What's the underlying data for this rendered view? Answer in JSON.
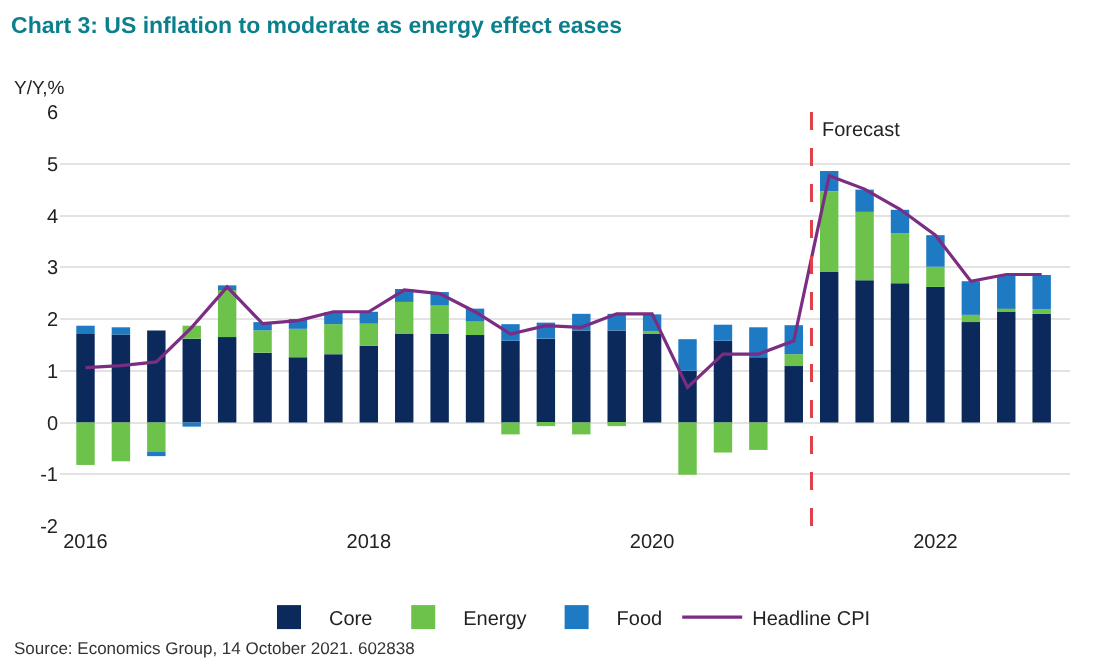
{
  "chart_data": {
    "type": "bar",
    "title": "Chart 3: US inflation to moderate as energy effect eases",
    "ylabel": "Y/Y,%",
    "x": [
      2016,
      2016.25,
      2016.5,
      2016.75,
      2017,
      2017.25,
      2017.5,
      2017.75,
      2018,
      2018.25,
      2018.5,
      2018.75,
      2019,
      2019.25,
      2019.5,
      2019.75,
      2020,
      2020.25,
      2020.5,
      2020.75,
      2021,
      2021.25,
      2021.5,
      2021.75,
      2022,
      2022.25,
      2022.5,
      2022.75
    ],
    "stacked": true,
    "series": [
      {
        "name": "Core",
        "color": "#0b2a5b",
        "values": [
          1.71,
          1.7,
          1.78,
          1.62,
          1.65,
          1.35,
          1.26,
          1.32,
          1.48,
          1.71,
          1.71,
          1.69,
          1.58,
          1.62,
          1.78,
          1.78,
          1.71,
          1.0,
          1.58,
          1.26,
          1.09,
          2.91,
          2.75,
          2.69,
          2.62,
          1.94,
          2.14,
          2.1
        ]
      },
      {
        "name": "Energy",
        "color": "#6cc24a",
        "values": [
          -0.82,
          -0.75,
          -0.56,
          0.25,
          0.91,
          0.43,
          0.55,
          0.58,
          0.43,
          0.62,
          0.55,
          0.26,
          -0.23,
          -0.07,
          -0.23,
          -0.07,
          0.06,
          -1.01,
          -0.58,
          -0.53,
          0.23,
          1.56,
          1.32,
          0.97,
          0.39,
          0.14,
          0.06,
          0.09
        ]
      },
      {
        "name": "Food",
        "color": "#1f7ac4",
        "values": [
          0.16,
          0.14,
          -0.09,
          -0.08,
          0.09,
          0.16,
          0.19,
          0.23,
          0.23,
          0.25,
          0.26,
          0.25,
          0.32,
          0.31,
          0.32,
          0.32,
          0.32,
          0.61,
          0.31,
          0.58,
          0.56,
          0.39,
          0.43,
          0.45,
          0.61,
          0.65,
          0.65,
          0.66
        ]
      },
      {
        "name": "Headline CPI",
        "type": "line",
        "color": "#7b2d84",
        "marker": "none",
        "values": [
          1.06,
          1.1,
          1.17,
          1.84,
          2.62,
          1.91,
          1.97,
          2.14,
          2.14,
          2.56,
          2.49,
          2.14,
          1.71,
          1.87,
          1.84,
          2.1,
          2.1,
          0.68,
          1.32,
          1.32,
          1.58,
          4.77,
          4.51,
          4.12,
          3.62,
          2.73,
          2.86,
          2.86
        ]
      }
    ],
    "xlim": [
      2015.82,
      2022.95
    ],
    "xticks": [
      2016,
      2018,
      2020,
      2022
    ],
    "ylim": [
      -2,
      6
    ],
    "yticks": [
      -2,
      -1,
      0,
      1,
      2,
      3,
      4,
      5,
      6
    ],
    "grid": "y",
    "legend": "bottom",
    "ref_lines": [
      {
        "axis": "x",
        "value": 2021.125,
        "label": "Forecast",
        "color": "#e0404a",
        "line_style": "dashed"
      }
    ],
    "annotations": [
      "Source: Economics Group, 14 October 2021. 602838"
    ]
  }
}
